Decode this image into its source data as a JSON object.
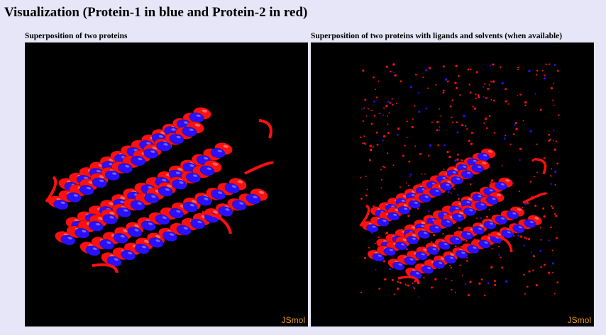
{
  "page": {
    "title": "Visualization (Protein-1 in blue and Protein-2 in red)"
  },
  "panels": [
    {
      "caption": "Superposition of two proteins",
      "logo": "JSmol",
      "show_solvents": false
    },
    {
      "caption": "Superposition of two proteins with ligands and solvents (when available)",
      "logo": "JSmol",
      "show_solvents": true
    }
  ],
  "colors": {
    "background_page": "#e6e6f8",
    "viewer_background": "#000000",
    "protein_1": "#2a10ff",
    "protein_2": "#ff1010",
    "logo": "#f0a020"
  }
}
